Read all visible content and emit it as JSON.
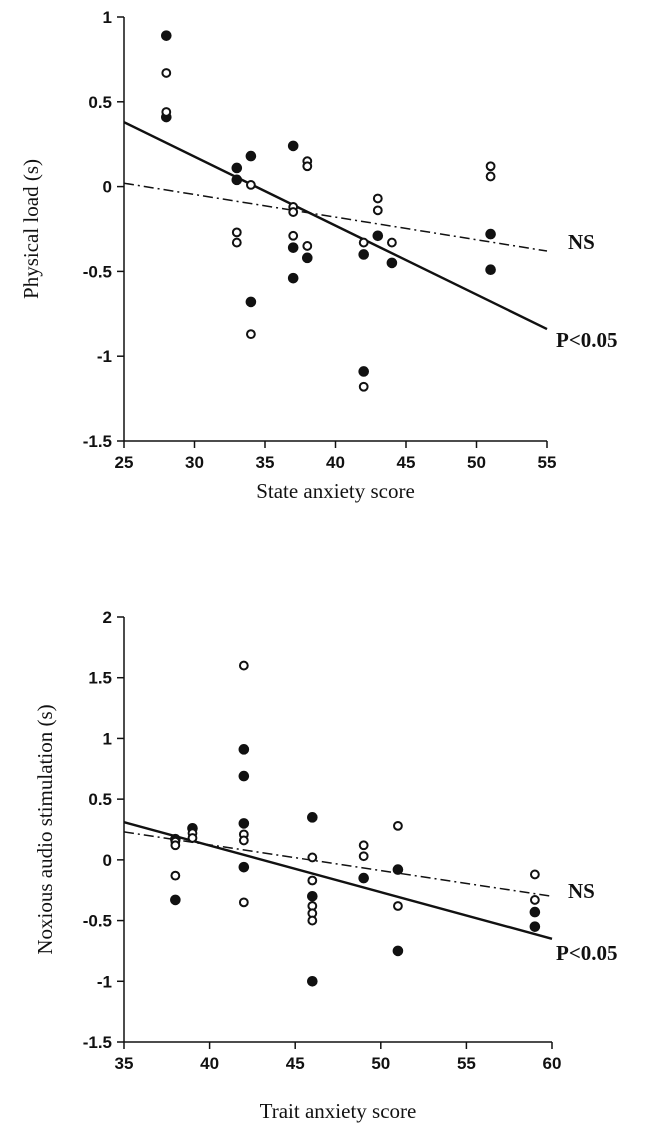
{
  "chart_data": [
    {
      "type": "scatter",
      "xlabel": "State anxiety score",
      "ylabel": "Physical load (s)",
      "xlim": [
        25,
        55
      ],
      "ylim": [
        -1.5,
        1
      ],
      "xticks": [
        25,
        30,
        35,
        40,
        45,
        50,
        55
      ],
      "yticks": [
        -1.5,
        -1,
        -0.5,
        0,
        0.5,
        1
      ],
      "ytick_labels": [
        "-1.5",
        "-1",
        "-0.5",
        "0",
        "0.5",
        "1"
      ],
      "grid": false,
      "series": [
        {
          "marker": "filled-circle",
          "points": [
            [
              28,
              0.89
            ],
            [
              28,
              0.41
            ],
            [
              33,
              0.11
            ],
            [
              33,
              0.04
            ],
            [
              34,
              0.18
            ],
            [
              34,
              -0.68
            ],
            [
              37,
              0.24
            ],
            [
              37,
              -0.36
            ],
            [
              37,
              -0.54
            ],
            [
              38,
              -0.42
            ],
            [
              42,
              -0.4
            ],
            [
              42,
              -1.09
            ],
            [
              43,
              -0.29
            ],
            [
              44,
              -0.45
            ],
            [
              51,
              -0.28
            ],
            [
              51,
              -0.49
            ]
          ]
        },
        {
          "marker": "open-circle",
          "points": [
            [
              28,
              0.67
            ],
            [
              28,
              0.44
            ],
            [
              33,
              -0.27
            ],
            [
              33,
              -0.33
            ],
            [
              34,
              0.01
            ],
            [
              34,
              -0.87
            ],
            [
              37,
              -0.12
            ],
            [
              37,
              -0.15
            ],
            [
              37,
              -0.29
            ],
            [
              38,
              0.15
            ],
            [
              38,
              0.12
            ],
            [
              38,
              -0.35
            ],
            [
              42,
              -0.33
            ],
            [
              42,
              -1.18
            ],
            [
              43,
              -0.07
            ],
            [
              43,
              -0.14
            ],
            [
              44,
              -0.33
            ],
            [
              51,
              0.12
            ],
            [
              51,
              0.06
            ]
          ]
        }
      ],
      "fits": [
        {
          "style": "solid",
          "x": [
            25,
            55
          ],
          "y": [
            0.38,
            -0.84
          ],
          "label": "P<0.05"
        },
        {
          "style": "dashdot",
          "x": [
            25,
            55
          ],
          "y": [
            0.02,
            -0.38
          ],
          "label": "NS"
        }
      ]
    },
    {
      "type": "scatter",
      "xlabel": "Trait anxiety score",
      "ylabel": "Noxious audio stimulation (s)",
      "xlim": [
        35,
        60
      ],
      "ylim": [
        -1.5,
        2
      ],
      "xticks": [
        35,
        40,
        45,
        50,
        55,
        60
      ],
      "yticks": [
        -1.5,
        -1,
        -0.5,
        0,
        0.5,
        1,
        1.5,
        2
      ],
      "ytick_labels": [
        "-1.5",
        "-1",
        "-0.5",
        "0",
        "0.5",
        "1",
        "1.5",
        "2"
      ],
      "grid": false,
      "series": [
        {
          "marker": "filled-circle",
          "points": [
            [
              38,
              0.17
            ],
            [
              38,
              -0.33
            ],
            [
              39,
              0.26
            ],
            [
              42,
              0.91
            ],
            [
              42,
              0.69
            ],
            [
              42,
              0.3
            ],
            [
              42,
              -0.06
            ],
            [
              46,
              0.35
            ],
            [
              46,
              -0.3
            ],
            [
              46,
              -1.0
            ],
            [
              49,
              -0.15
            ],
            [
              51,
              -0.08
            ],
            [
              51,
              -0.75
            ],
            [
              59,
              -0.43
            ],
            [
              59,
              -0.55
            ]
          ]
        },
        {
          "marker": "open-circle",
          "points": [
            [
              38,
              0.15
            ],
            [
              38,
              0.12
            ],
            [
              38,
              -0.13
            ],
            [
              39,
              0.22
            ],
            [
              39,
              0.18
            ],
            [
              42,
              1.6
            ],
            [
              42,
              0.21
            ],
            [
              42,
              0.16
            ],
            [
              42,
              -0.35
            ],
            [
              46,
              0.02
            ],
            [
              46,
              -0.17
            ],
            [
              46,
              -0.38
            ],
            [
              46,
              -0.44
            ],
            [
              46,
              -0.5
            ],
            [
              49,
              0.12
            ],
            [
              49,
              0.03
            ],
            [
              51,
              0.28
            ],
            [
              51,
              -0.38
            ],
            [
              59,
              -0.12
            ],
            [
              59,
              -0.33
            ]
          ]
        }
      ],
      "fits": [
        {
          "style": "solid",
          "x": [
            35,
            60
          ],
          "y": [
            0.31,
            -0.65
          ],
          "label": "P<0.05"
        },
        {
          "style": "dashdot",
          "x": [
            35,
            60
          ],
          "y": [
            0.23,
            -0.3
          ],
          "label": "NS"
        }
      ]
    }
  ]
}
